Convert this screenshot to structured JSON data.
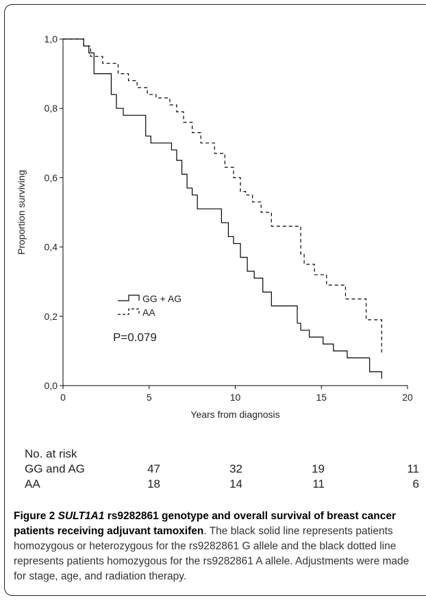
{
  "chart_data": {
    "type": "line",
    "step": true,
    "xlabel": "Years from diagnosis",
    "ylabel": "Proportion surviving",
    "xlim": [
      0,
      20
    ],
    "ylim": [
      0,
      1.0
    ],
    "x_ticks": [
      "0",
      "5",
      "10",
      "15",
      "20"
    ],
    "y_ticks": [
      "0,0",
      "0,2",
      "0,4",
      "0,6",
      "0,8",
      "1,0"
    ],
    "grid": false,
    "legend_position": "center-left",
    "annotation": "P=0.079",
    "series": [
      {
        "name": "GG + AG",
        "line_style": "solid",
        "color": "#000000",
        "x": [
          0,
          1.2,
          1.5,
          1.8,
          2.3,
          2.8,
          3.1,
          3.5,
          4.8,
          5.1,
          6.3,
          6.6,
          6.9,
          7.2,
          7.5,
          7.8,
          8.2,
          9.2,
          9.6,
          9.9,
          10.3,
          10.7,
          11.1,
          11.6,
          12.1,
          13.6,
          13.8,
          14.3,
          15.1,
          15.7,
          16.5,
          17.8,
          18.5
        ],
        "y": [
          1.0,
          0.98,
          0.96,
          0.9,
          0.9,
          0.84,
          0.8,
          0.78,
          0.72,
          0.7,
          0.68,
          0.65,
          0.61,
          0.57,
          0.55,
          0.51,
          0.51,
          0.47,
          0.43,
          0.41,
          0.37,
          0.33,
          0.31,
          0.27,
          0.23,
          0.18,
          0.16,
          0.14,
          0.12,
          0.1,
          0.08,
          0.04,
          0.02
        ]
      },
      {
        "name": "AA",
        "line_style": "dashed",
        "color": "#000000",
        "x": [
          0,
          1.2,
          1.6,
          1.8,
          2.3,
          3.2,
          3.8,
          4.3,
          4.9,
          5.4,
          6.2,
          6.6,
          7.0,
          7.5,
          8.0,
          8.8,
          9.4,
          9.9,
          10.3,
          10.6,
          11.0,
          11.5,
          12.1,
          12.6,
          13.8,
          14.0,
          14.6,
          15.3,
          16.4,
          17.6,
          18.5
        ],
        "y": [
          1.0,
          0.98,
          0.95,
          0.95,
          0.93,
          0.9,
          0.88,
          0.86,
          0.84,
          0.83,
          0.81,
          0.79,
          0.76,
          0.73,
          0.7,
          0.67,
          0.63,
          0.6,
          0.56,
          0.55,
          0.53,
          0.5,
          0.46,
          0.46,
          0.38,
          0.35,
          0.32,
          0.29,
          0.25,
          0.19,
          0.09
        ]
      }
    ],
    "risk_table": {
      "title": "No. at risk",
      "rows": [
        {
          "label": "GG and AG",
          "values": [
            "47",
            "32",
            "19",
            "11"
          ]
        },
        {
          "label": "AA",
          "values": [
            "18",
            "14",
            "11",
            "6"
          ]
        }
      ]
    }
  },
  "caption": {
    "fig_label": "Figure 2",
    "gene": "SULT1A1",
    "title_rest": "rs9282861 genotype and overall survival of breast cancer patients receiving adjuvant tamoxifen",
    "body": ". The black solid line represents patients homozygous or heterozygous for the rs9282861 G allele and the black dotted line represents patients homozygous for the rs9282861 A allele. Adjustments were made for stage, age, and radiation therapy."
  }
}
